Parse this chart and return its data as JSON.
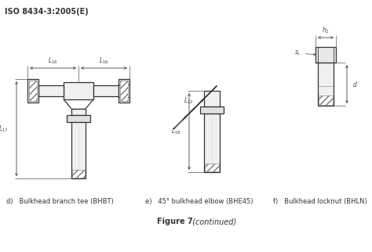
{
  "title_top": "ISO 8434-3:2005(E)",
  "figure_caption_bold": "Figure 7",
  "figure_caption_italic": " (continued)",
  "label_d": "d)   Bulkhead branch tee (BHBT)",
  "label_e": "e)   45° bulkhead elbow (BHE45)",
  "label_f": "f)   Bulkhead locknut (BHLN)",
  "bg_color": "#ffffff",
  "line_color": "#333333",
  "dim_color": "#444444",
  "figsize": [
    4.74,
    3.22
  ],
  "dpi": 100
}
